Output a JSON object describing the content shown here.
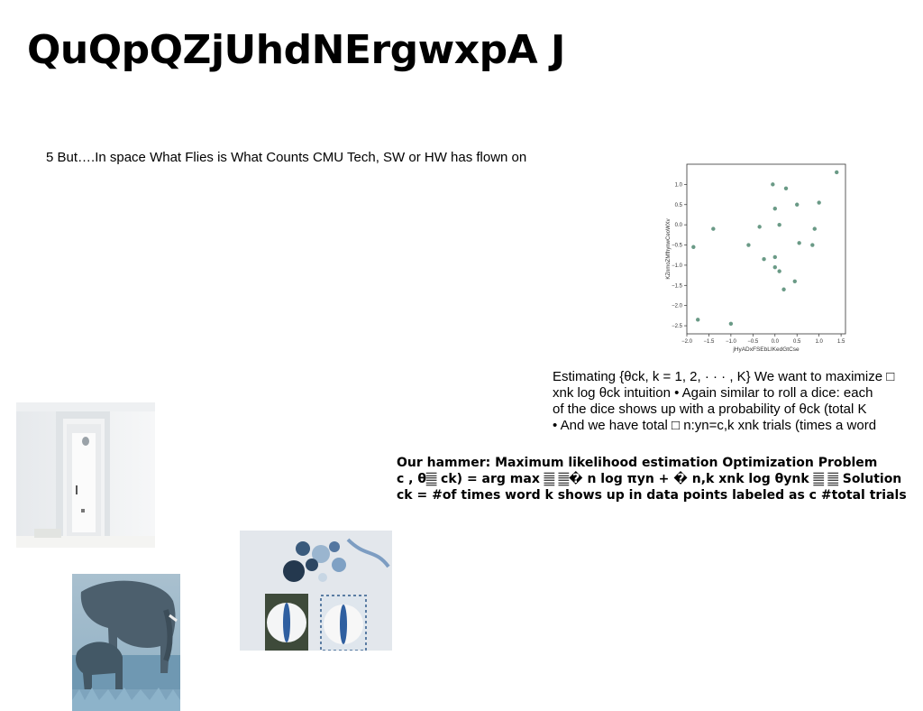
{
  "slide": {
    "title": "QuQpQZjUhdNErgwxpA J",
    "subtitle": "5 But….In space What Flies is What Counts CMU Tech, SW or HW has flown on"
  },
  "chart_data": {
    "type": "scatter",
    "xlabel": "jHyADxFSEbLIKedGtCse",
    "ylabel": "KZnmoZMfhynwCeoWXv",
    "xlim": [
      -2.0,
      1.6
    ],
    "ylim": [
      -2.7,
      1.5
    ],
    "x_ticks": [
      "−2.0",
      "−1.5",
      "−1.0",
      "−0.5",
      "0.0",
      "0.5",
      "1.0",
      "1.5"
    ],
    "x_tick_values": [
      -2.0,
      -1.5,
      -1.0,
      -0.5,
      0.0,
      0.5,
      1.0,
      1.5
    ],
    "y_ticks": [
      "1.0",
      "0.5",
      "0.0",
      "−0.5",
      "−1.0",
      "−1.5",
      "−2.0",
      "−2.5"
    ],
    "y_tick_values": [
      1.0,
      0.5,
      0.0,
      -0.5,
      -1.0,
      -1.5,
      -2.0,
      -2.5
    ],
    "grid": false,
    "point_color": "#6a9a86",
    "points": [
      {
        "x": -1.85,
        "y": -0.55
      },
      {
        "x": -1.75,
        "y": -2.35
      },
      {
        "x": -1.4,
        "y": -0.1
      },
      {
        "x": -1.0,
        "y": -2.45
      },
      {
        "x": -0.6,
        "y": -0.5
      },
      {
        "x": -0.35,
        "y": -0.05
      },
      {
        "x": -0.25,
        "y": -0.85
      },
      {
        "x": -0.05,
        "y": 1.0
      },
      {
        "x": 0.0,
        "y": -0.8
      },
      {
        "x": 0.0,
        "y": 0.4
      },
      {
        "x": 0.0,
        "y": -1.05
      },
      {
        "x": 0.1,
        "y": -1.15
      },
      {
        "x": 0.1,
        "y": 0.0
      },
      {
        "x": 0.25,
        "y": 0.9
      },
      {
        "x": 0.2,
        "y": -1.6
      },
      {
        "x": 0.45,
        "y": -1.4
      },
      {
        "x": 0.5,
        "y": 0.5
      },
      {
        "x": 0.55,
        "y": -0.45
      },
      {
        "x": 0.85,
        "y": -0.5
      },
      {
        "x": 0.9,
        "y": -0.1
      },
      {
        "x": 1.0,
        "y": 0.55
      },
      {
        "x": 1.4,
        "y": 1.3
      }
    ]
  },
  "text_block_1": {
    "lines": [
      "Estimating {θck, k = 1, 2, · · · , K} We want to maximize □",
      "xnk log θck intuition • Again similar to roll a dice: each",
      "of the dice shows up with a probability of θck (total K",
      "• And we have total □ n:yn=c,k xnk trials (times a word"
    ]
  },
  "text_block_2": {
    "lines": [
      "Our hammer: Maximum likelihood estimation Optimization Problem",
      "c , θ𝄛 ck) = arg max 𝄛 𝄛� n log πyn + � n,k xnk log θynk 𝄛 𝄛 Solution",
      "ck = #of times word k shows up in data points labeled as c #total trials"
    ]
  },
  "images": {
    "door": "white-doorway-photo",
    "table": "blue-table-setting-photo",
    "elephant": "elephant-family-photo"
  }
}
